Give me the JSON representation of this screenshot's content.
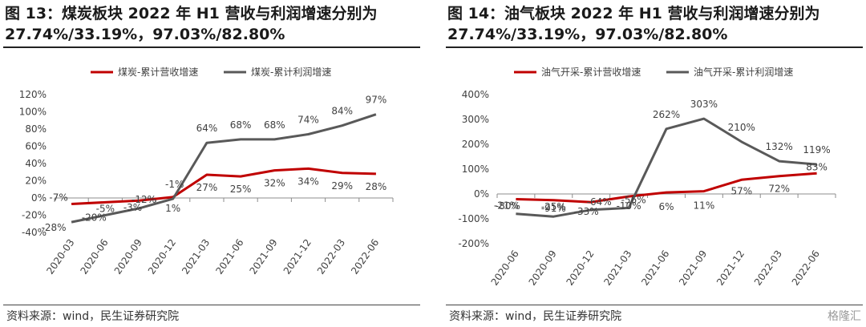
{
  "panels": [
    {
      "title_line1": "图 13：煤炭板块 2022 年 H1 营收与利润增速分别为",
      "title_line2": "27.74%/33.19%，97.03%/82.80%",
      "source": "资料来源：wind，民生证券研究院"
    },
    {
      "title_line1": "图 14：油气板块 2022 年 H1 营收与利润增速分别为",
      "title_line2": "27.74%/33.19%，97.03%/82.80%",
      "source": "资料来源：wind，民生证券研究院"
    }
  ],
  "watermark": "格隆汇",
  "chart_data": [
    {
      "type": "line",
      "title": "",
      "xlabel": "",
      "ylabel": "",
      "categories": [
        "2020-03",
        "2020-06",
        "2020-09",
        "2020-12",
        "2021-03",
        "2021-06",
        "2021-09",
        "2021-12",
        "2022-03",
        "2022-06"
      ],
      "ylim": [
        -40,
        120
      ],
      "yticks": [
        -40,
        -20,
        0,
        20,
        40,
        60,
        80,
        100,
        120
      ],
      "ytick_labels": [
        "-40%",
        "-20%",
        "0%",
        "20%",
        "40%",
        "60%",
        "80%",
        "100%",
        "120%"
      ],
      "legend_position": "top-center",
      "grid": false,
      "series": [
        {
          "name": "煤炭-累计营收增速",
          "color": "#c00000",
          "values": [
            -7,
            -5,
            -3,
            1,
            27,
            25,
            32,
            34,
            29,
            28
          ],
          "labels": [
            "-7%",
            "-5%",
            "-3%",
            "1%",
            "27%",
            "25%",
            "32%",
            "34%",
            "29%",
            "28%"
          ]
        },
        {
          "name": "煤炭-累计利润增速",
          "color": "#595959",
          "values": [
            -28,
            -20,
            -12,
            -1,
            64,
            68,
            68,
            74,
            84,
            97
          ],
          "labels": [
            "-28%",
            "-20%",
            "-12%",
            "-1%",
            "64%",
            "68%",
            "68%",
            "74%",
            "84%",
            "97%"
          ]
        }
      ]
    },
    {
      "type": "line",
      "title": "",
      "xlabel": "",
      "ylabel": "",
      "categories": [
        "2020-06",
        "2020-09",
        "2020-12",
        "2021-03",
        "2021-06",
        "2021-09",
        "2021-12",
        "2022-03",
        "2022-06"
      ],
      "ylim": [
        -200,
        400
      ],
      "yticks": [
        -200,
        -100,
        0,
        100,
        200,
        300,
        400
      ],
      "ytick_labels": [
        "-200%",
        "-100%",
        "0%",
        "100%",
        "200%",
        "300%",
        "400%"
      ],
      "legend_position": "top-center",
      "grid": false,
      "series": [
        {
          "name": "油气开采-累计营收增速",
          "color": "#c00000",
          "values": [
            -21,
            -25,
            -33,
            -10,
            6,
            11,
            57,
            72,
            83
          ],
          "labels": [
            "-21%",
            "-25%",
            "-33%",
            "-10%",
            "6%",
            "11%",
            "57%",
            "72%",
            "83%"
          ]
        },
        {
          "name": "油气开采-累计利润增速",
          "color": "#595959",
          "values": [
            -80,
            -91,
            -64,
            -56,
            262,
            303,
            210,
            132,
            119
          ],
          "labels": [
            "-80%",
            "-91%",
            "-64%",
            "-56%",
            "262%",
            "303%",
            "210%",
            "132%",
            "119%"
          ]
        }
      ]
    }
  ]
}
